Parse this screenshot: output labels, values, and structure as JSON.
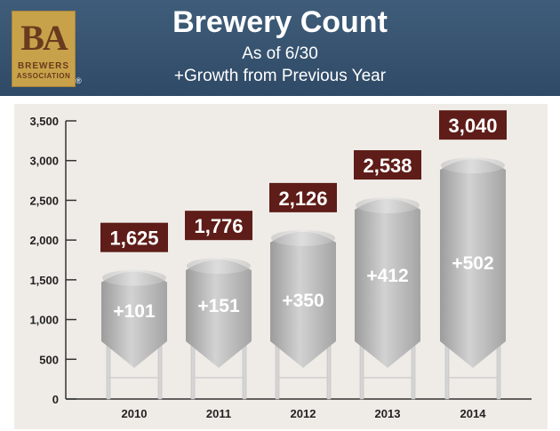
{
  "header": {
    "title": "Brewery Count",
    "subtitle1": "As of 6/30",
    "subtitle2": "+Growth from Previous Year",
    "logo": {
      "mark": "BA",
      "line1": "BREWERS",
      "line2": "ASSOCIATION",
      "reg": "®"
    }
  },
  "colors": {
    "header_bg": "#34506d",
    "value_box": "#5e1d18",
    "silo_gray": "#bdbdbd",
    "plot_bg": "#efece7"
  },
  "chart_data": {
    "type": "bar",
    "categories": [
      "2010",
      "2011",
      "2012",
      "2013",
      "2014"
    ],
    "values": [
      1625,
      1776,
      2126,
      2538,
      3040
    ],
    "value_labels": [
      "1,625",
      "1,776",
      "2,126",
      "2,538",
      "3,040"
    ],
    "growth_labels": [
      "+101",
      "+151",
      "+350",
      "+412",
      "+502"
    ],
    "ylim": [
      0,
      3500
    ],
    "yticks": [
      0,
      500,
      1000,
      1500,
      2000,
      2500,
      3000,
      3500
    ],
    "ytick_labels": [
      "0",
      "500",
      "1,000",
      "1,500",
      "2,000",
      "2,500",
      "3,000",
      "3,500"
    ],
    "title": "Brewery Count",
    "xlabel": "",
    "ylabel": ""
  }
}
